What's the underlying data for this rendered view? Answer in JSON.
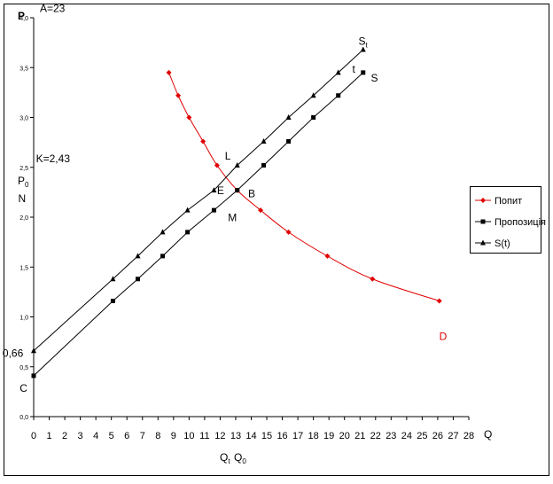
{
  "chart_data": {
    "type": "line",
    "xlabel": "Q",
    "ylabel": "P",
    "xlim": [
      0,
      28
    ],
    "ylim": [
      0,
      4
    ],
    "x_ticks": [
      "0",
      "1",
      "2",
      "3",
      "4",
      "5",
      "6",
      "7",
      "8",
      "9",
      "10",
      "11",
      "12",
      "13",
      "14",
      "15",
      "16",
      "17",
      "18",
      "19",
      "20",
      "21",
      "22",
      "23",
      "24",
      "25",
      "26",
      "27",
      "28"
    ],
    "y_ticks": [
      "0,0",
      "0,5",
      "1,0",
      "1,5",
      "2,0",
      "2,5",
      "3,0",
      "3,5",
      "4,0"
    ],
    "grid": false,
    "legend": "right",
    "series": [
      {
        "name": "Попит",
        "color": "#e00000",
        "marker": "diamond",
        "points": [
          [
            8.7,
            3.45
          ],
          [
            9.3,
            3.22
          ],
          [
            10.0,
            3.0
          ],
          [
            10.9,
            2.76
          ],
          [
            11.8,
            2.52
          ],
          [
            13.1,
            2.27
          ],
          [
            14.6,
            2.07
          ],
          [
            16.4,
            1.85
          ],
          [
            18.9,
            1.61
          ],
          [
            21.8,
            1.38
          ],
          [
            26.1,
            1.16
          ]
        ]
      },
      {
        "name": "Пропозиція",
        "color": "#000000",
        "marker": "square",
        "points": [
          [
            0,
            0.41
          ],
          [
            5.1,
            1.16
          ],
          [
            6.7,
            1.38
          ],
          [
            8.3,
            1.61
          ],
          [
            9.9,
            1.85
          ],
          [
            11.6,
            2.07
          ],
          [
            13.1,
            2.27
          ],
          [
            14.8,
            2.52
          ],
          [
            16.4,
            2.76
          ],
          [
            18.0,
            3.0
          ],
          [
            19.6,
            3.22
          ],
          [
            21.2,
            3.45
          ]
        ]
      },
      {
        "name": "S(t)",
        "color": "#000000",
        "marker": "triangle",
        "points": [
          [
            0,
            0.66
          ],
          [
            5.1,
            1.38
          ],
          [
            6.7,
            1.61
          ],
          [
            8.3,
            1.85
          ],
          [
            9.9,
            2.07
          ],
          [
            11.6,
            2.27
          ],
          [
            13.1,
            2.52
          ],
          [
            14.8,
            2.76
          ],
          [
            16.4,
            3.0
          ],
          [
            18.0,
            3.22
          ],
          [
            19.6,
            3.45
          ],
          [
            21.2,
            3.68
          ]
        ]
      }
    ],
    "annotations": [
      {
        "text": "A=23",
        "x": 0.4,
        "y": 4.06,
        "color": "#000000"
      },
      {
        "text": "K=2,43",
        "x": 0.15,
        "y": 2.55,
        "color": "#000000"
      },
      {
        "text": "N",
        "x": -1.0,
        "y": 2.15,
        "color": "#000000"
      },
      {
        "text": "L",
        "x": 12.3,
        "y": 2.58,
        "color": "#000000"
      },
      {
        "text": "E",
        "x": 11.8,
        "y": 2.23,
        "color": "#000000"
      },
      {
        "text": "B",
        "x": 13.8,
        "y": 2.2,
        "color": "#000000"
      },
      {
        "text": "M",
        "x": 12.5,
        "y": 1.96,
        "color": "#000000"
      },
      {
        "text": "t",
        "x": 20.5,
        "y": 3.45,
        "color": "#000000"
      },
      {
        "text": "S",
        "x": 21.7,
        "y": 3.36,
        "color": "#000000"
      },
      {
        "text": "D",
        "x": 26.1,
        "y": 0.77,
        "color": "#e00000"
      },
      {
        "text": "C",
        "x": -0.9,
        "y": 0.25,
        "color": "#000000"
      },
      {
        "text": "0,66",
        "x": -2.0,
        "y": 0.6,
        "color": "#000000"
      }
    ],
    "p0_label": "P",
    "p0_subscript": "0",
    "st_label": "S",
    "st_subscript": "t",
    "qt_label": "Q",
    "qt_subscript": "t",
    "q0_label": "Q",
    "q0_subscript": "0"
  }
}
